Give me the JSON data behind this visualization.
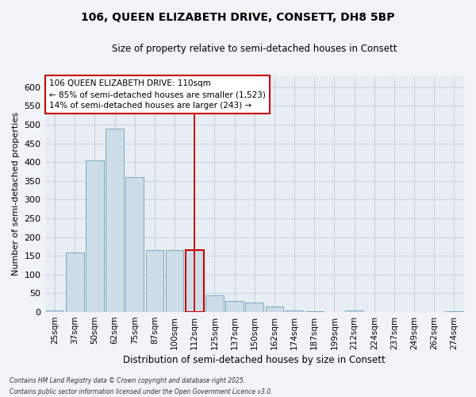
{
  "title": "106, QUEEN ELIZABETH DRIVE, CONSETT, DH8 5BP",
  "subtitle": "Size of property relative to semi-detached houses in Consett",
  "xlabel": "Distribution of semi-detached houses by size in Consett",
  "ylabel": "Number of semi-detached properties",
  "categories": [
    "25sqm",
    "37sqm",
    "50sqm",
    "62sqm",
    "75sqm",
    "87sqm",
    "100sqm",
    "112sqm",
    "125sqm",
    "137sqm",
    "150sqm",
    "162sqm",
    "174sqm",
    "187sqm",
    "199sqm",
    "212sqm",
    "224sqm",
    "237sqm",
    "249sqm",
    "262sqm",
    "274sqm"
  ],
  "values": [
    5,
    160,
    405,
    490,
    360,
    165,
    165,
    165,
    45,
    30,
    25,
    15,
    5,
    3,
    1,
    5,
    0,
    0,
    0,
    0,
    2
  ],
  "bar_color": "#ccdde8",
  "bar_edge_color": "#7aaabb",
  "highlight_index": 7,
  "highlight_bar_edge_color": "#cc0000",
  "vline_color": "#cc0000",
  "annotation_title": "106 QUEEN ELIZABETH DRIVE: 110sqm",
  "annotation_line1": "← 85% of semi-detached houses are smaller (1,523)",
  "annotation_line2": "14% of semi-detached houses are larger (243) →",
  "annotation_box_color": "#cc0000",
  "ylim": [
    0,
    630
  ],
  "yticks": [
    0,
    50,
    100,
    150,
    200,
    250,
    300,
    350,
    400,
    450,
    500,
    550,
    600
  ],
  "grid_color": "#c8d4de",
  "background_color": "#e8eef4",
  "fig_background": "#f0f4f8",
  "footer_line1": "Contains HM Land Registry data © Crown copyright and database right 2025.",
  "footer_line2": "Contains public sector information licensed under the Open Government Licence v3.0."
}
